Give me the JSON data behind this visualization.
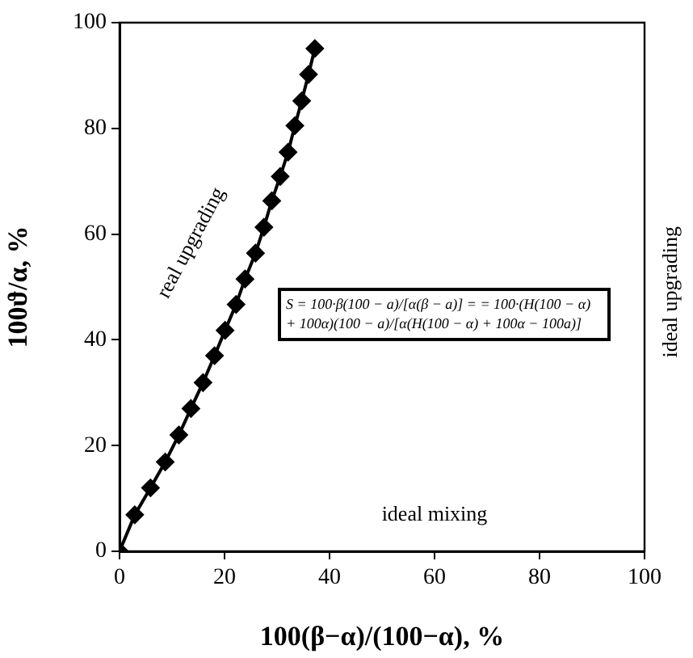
{
  "chart_data": {
    "type": "line",
    "xlabel": "100(β−α)/(100−α), %",
    "ylabel": "100ϑ/α, %",
    "x": [
      0,
      2.9,
      5.9,
      8.7,
      11.3,
      13.6,
      15.9,
      18.1,
      20.1,
      22.2,
      23.9,
      25.9,
      27.5,
      29.0,
      30.6,
      32.1,
      33.4,
      34.7,
      36.0,
      37.2
    ],
    "series": [
      {
        "color": "#000000",
        "values": [
          0,
          6.9,
          12.0,
          16.9,
          22.0,
          27.0,
          31.9,
          37.0,
          41.8,
          46.7,
          51.5,
          56.4,
          61.3,
          66.3,
          70.9,
          75.5,
          80.5,
          85.2,
          90.2,
          95.1
        ]
      }
    ],
    "xlim": [
      0,
      100
    ],
    "xticks": [
      0,
      20,
      40,
      60,
      80,
      100
    ],
    "ylim": [
      0,
      100
    ],
    "yticks": [
      0,
      20,
      40,
      60,
      80,
      100
    ],
    "grid": false,
    "legend": false,
    "marker": "diamond",
    "line_style": "solid",
    "annotations": [
      "real upgrading",
      "ideal mixing",
      "ideal upgrading",
      "S = 100·β(100 − a)/[α(β − a)] = = 100·(H(100 − α) + 100α)(100 − a)/[α(H(100 − α) + 100α − 100a)]"
    ]
  }
}
